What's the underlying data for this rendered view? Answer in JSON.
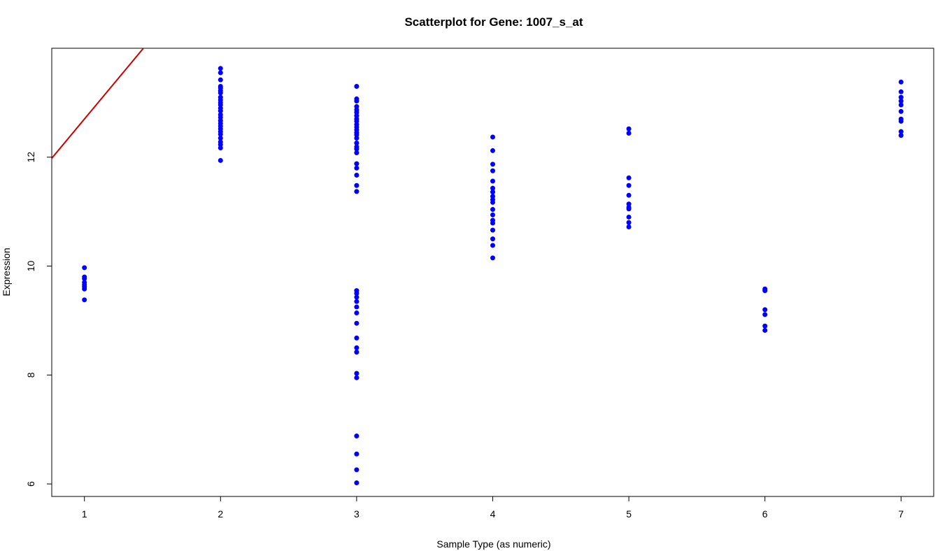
{
  "chart_data": {
    "type": "scatter",
    "title": "Scatterplot for Gene: 1007_s_at",
    "xlabel": "Sample Type (as numeric)",
    "ylabel": "Expression",
    "xlim": [
      0.76,
      7.24
    ],
    "ylim": [
      5.77,
      14.0
    ],
    "x_ticks": [
      1,
      2,
      3,
      4,
      5,
      6,
      7
    ],
    "y_ticks": [
      6,
      8,
      10,
      12
    ],
    "grid": false,
    "legend": "none",
    "point_color": "#0000ff",
    "line_color": "#cc0000",
    "regression_line": {
      "slope": 3.0,
      "intercept": 9.7
    },
    "points": [
      {
        "x": 1,
        "y": [
          9.97,
          9.8,
          9.77,
          9.7,
          9.66,
          9.62,
          9.58,
          9.38
        ]
      },
      {
        "x": 2,
        "y": [
          13.63,
          13.55,
          13.42,
          13.3,
          13.27,
          13.22,
          13.18,
          13.1,
          13.05,
          13.0,
          12.96,
          12.9,
          12.85,
          12.78,
          12.73,
          12.67,
          12.62,
          12.57,
          12.52,
          12.47,
          12.42,
          12.35,
          12.28,
          12.23,
          12.17,
          11.94
        ]
      },
      {
        "x": 3,
        "y": [
          13.3,
          13.07,
          13.03,
          12.93,
          12.87,
          12.82,
          12.76,
          12.7,
          12.66,
          12.6,
          12.55,
          12.5,
          12.45,
          12.41,
          12.35,
          12.26,
          12.19,
          12.15,
          12.08,
          11.88,
          11.8,
          11.67,
          11.48,
          11.37,
          9.55,
          9.5,
          9.43,
          9.35,
          9.25,
          9.14,
          8.95,
          8.68,
          8.5,
          8.42,
          8.03,
          7.95,
          6.88,
          6.55,
          6.26,
          6.02
        ]
      },
      {
        "x": 4,
        "y": [
          12.37,
          12.12,
          11.87,
          11.75,
          11.56,
          11.43,
          11.36,
          11.28,
          11.22,
          11.17,
          11.04,
          10.94,
          10.84,
          10.79,
          10.66,
          10.5,
          10.38,
          10.15
        ]
      },
      {
        "x": 5,
        "y": [
          12.52,
          12.44,
          11.62,
          11.48,
          11.3,
          11.14,
          11.08,
          11.05,
          10.9,
          10.8,
          10.72
        ]
      },
      {
        "x": 6,
        "y": [
          9.58,
          9.55,
          9.2,
          9.11,
          8.9,
          8.82
        ]
      },
      {
        "x": 7,
        "y": [
          13.38,
          13.2,
          13.1,
          13.03,
          12.96,
          12.84,
          12.7,
          12.66,
          12.47,
          12.4
        ]
      }
    ]
  }
}
